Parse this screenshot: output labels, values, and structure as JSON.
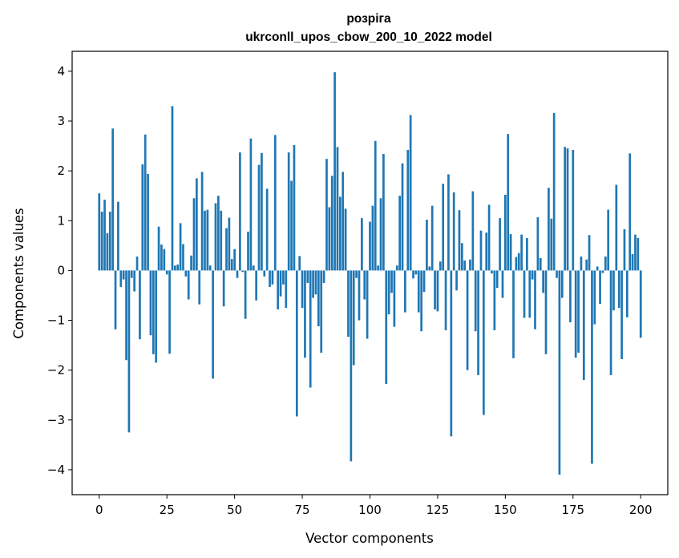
{
  "chart_data": {
    "type": "bar",
    "title": "розріга",
    "subtitle": "ukrconll_upos_cbow_200_10_2022 model",
    "xlabel": "Vector components",
    "ylabel": "Components values",
    "xlim": [
      -10,
      210
    ],
    "ylim": [
      -4.5,
      4.4
    ],
    "xticks": [
      0,
      25,
      50,
      75,
      100,
      125,
      150,
      175,
      200
    ],
    "yticks": [
      -4,
      -3,
      -2,
      -1,
      0,
      1,
      2,
      3,
      4
    ],
    "xtick_labels": [
      "0",
      "25",
      "50",
      "75",
      "100",
      "125",
      "150",
      "175",
      "200"
    ],
    "ytick_labels": [
      "−4",
      "−3",
      "−2",
      "−1",
      "0",
      "1",
      "2",
      "3",
      "4"
    ],
    "bar_color": "#1f77b4",
    "grid": false,
    "values": [
      1.55,
      1.18,
      1.42,
      0.75,
      1.18,
      2.85,
      -1.18,
      1.38,
      -0.33,
      -0.18,
      -1.8,
      -3.25,
      -0.15,
      -0.42,
      0.28,
      -1.38,
      2.13,
      2.73,
      1.94,
      -1.3,
      -1.68,
      -1.85,
      0.88,
      0.52,
      0.43,
      -0.08,
      -1.67,
      3.3,
      0.1,
      0.12,
      0.95,
      0.53,
      -0.12,
      -0.58,
      0.3,
      1.45,
      1.85,
      -0.68,
      1.98,
      1.2,
      1.22,
      0.1,
      -2.17,
      1.35,
      1.5,
      1.2,
      -0.72,
      0.85,
      1.06,
      0.23,
      0.43,
      -0.15,
      2.37,
      -0.03,
      -0.97,
      0.78,
      2.65,
      0.1,
      -0.6,
      2.12,
      2.36,
      -0.12,
      1.64,
      -0.33,
      -0.28,
      2.72,
      -0.78,
      -0.52,
      -0.28,
      -0.75,
      2.37,
      1.8,
      2.52,
      -2.93,
      0.29,
      -0.75,
      -1.75,
      -0.25,
      -2.35,
      -0.55,
      -0.48,
      -1.12,
      -1.65,
      -0.25,
      2.24,
      1.27,
      1.9,
      3.98,
      2.48,
      1.48,
      1.98,
      1.24,
      -1.33,
      -3.83,
      -1.9,
      -0.15,
      -1.0,
      1.05,
      -0.58,
      -1.37,
      0.98,
      1.3,
      2.6,
      0.1,
      1.45,
      2.34,
      -2.28,
      -0.88,
      -0.45,
      -1.13,
      0.1,
      1.5,
      2.15,
      -0.84,
      2.42,
      3.12,
      -0.16,
      -0.08,
      -0.84,
      -1.22,
      -0.43,
      1.02,
      0.08,
      1.3,
      -0.78,
      -0.82,
      0.18,
      1.74,
      -1.2,
      1.93,
      -3.33,
      1.57,
      -0.4,
      1.21,
      0.55,
      0.2,
      -2.0,
      0.22,
      1.59,
      -1.22,
      -2.1,
      0.8,
      -2.9,
      0.76,
      1.32,
      -0.06,
      -1.2,
      -0.35,
      1.05,
      -0.55,
      1.52,
      2.74,
      0.73,
      -1.76,
      0.27,
      0.35,
      0.72,
      -0.95,
      0.65,
      -0.95,
      -0.18,
      -1.18,
      1.07,
      0.25,
      -0.45,
      -1.68,
      1.66,
      1.04,
      3.16,
      -0.15,
      -4.1,
      -0.55,
      2.48,
      2.45,
      -1.04,
      2.42,
      -1.75,
      -1.65,
      0.28,
      -2.2,
      0.22,
      0.71,
      -3.88,
      -1.08,
      0.08,
      -0.67,
      -0.05,
      0.28,
      1.22,
      -2.1,
      -0.8,
      1.72,
      -0.75,
      -1.78,
      0.83,
      -0.94,
      2.35,
      0.33,
      0.72,
      0.65,
      -1.35
    ]
  }
}
